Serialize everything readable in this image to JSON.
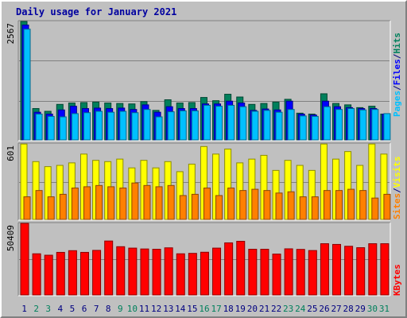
{
  "title": "Daily usage for January 2021",
  "colors": {
    "hits": "#00805c",
    "files": "#0000ff",
    "pages": "#00c0ff",
    "visits": "#ffff00",
    "sites": "#ff8000",
    "kbytes": "#ff0000",
    "weekday_label": "#000080",
    "weekend_label": "#00805c",
    "legend_sep": "#000080"
  },
  "legend": {
    "top": [
      "Pages",
      "/",
      "Files",
      "/",
      "Hits"
    ],
    "middle": [
      "Sites",
      "/",
      "Visits"
    ],
    "bottom": [
      "KBytes"
    ]
  },
  "chart_data": [
    {
      "type": "bar",
      "panel": "hits-files-pages",
      "ylabel": "2567",
      "ylim": [
        0,
        2567
      ],
      "categories": [
        "1",
        "2",
        "3",
        "4",
        "5",
        "6",
        "7",
        "8",
        "9",
        "10",
        "11",
        "12",
        "13",
        "14",
        "15",
        "16",
        "17",
        "18",
        "19",
        "20",
        "21",
        "22",
        "23",
        "24",
        "25",
        "26",
        "27",
        "28",
        "29",
        "30",
        "31"
      ],
      "series": [
        {
          "name": "Hits",
          "values": [
            2567,
            680,
            620,
            770,
            800,
            810,
            820,
            800,
            790,
            780,
            830,
            640,
            870,
            800,
            810,
            920,
            850,
            990,
            930,
            770,
            790,
            820,
            880,
            580,
            560,
            1000,
            790,
            760,
            700,
            730,
            560
          ]
        },
        {
          "name": "Files",
          "values": [
            2490,
            600,
            560,
            650,
            730,
            680,
            690,
            680,
            690,
            660,
            760,
            600,
            720,
            680,
            680,
            780,
            780,
            840,
            800,
            640,
            670,
            650,
            840,
            560,
            540,
            840,
            720,
            700,
            680,
            680,
            560
          ]
        },
        {
          "name": "Pages",
          "values": [
            2400,
            560,
            510,
            500,
            570,
            590,
            620,
            600,
            620,
            590,
            660,
            500,
            610,
            630,
            630,
            750,
            730,
            750,
            720,
            620,
            640,
            600,
            660,
            520,
            510,
            720,
            660,
            680,
            650,
            660,
            570
          ]
        }
      ]
    },
    {
      "type": "bar",
      "panel": "sites-visits",
      "ylabel": "601",
      "ylim": [
        0,
        601
      ],
      "categories": [
        "1",
        "2",
        "3",
        "4",
        "5",
        "6",
        "7",
        "8",
        "9",
        "10",
        "11",
        "12",
        "13",
        "14",
        "15",
        "16",
        "17",
        "18",
        "19",
        "20",
        "21",
        "22",
        "23",
        "24",
        "25",
        "26",
        "27",
        "28",
        "29",
        "30",
        "31"
      ],
      "series": [
        {
          "name": "Visits",
          "values": [
            600,
            460,
            420,
            430,
            450,
            520,
            470,
            460,
            480,
            410,
            470,
            410,
            460,
            380,
            440,
            580,
            520,
            560,
            450,
            480,
            510,
            390,
            470,
            430,
            390,
            600,
            480,
            540,
            430,
            600,
            520
          ]
        },
        {
          "name": "Sites",
          "values": [
            180,
            230,
            180,
            200,
            250,
            260,
            270,
            260,
            250,
            290,
            270,
            260,
            270,
            190,
            200,
            250,
            190,
            250,
            230,
            240,
            230,
            210,
            220,
            180,
            180,
            230,
            230,
            240,
            230,
            170,
            200
          ]
        }
      ]
    },
    {
      "type": "bar",
      "panel": "kbytes",
      "ylabel": "50409",
      "ylim": [
        0,
        50409
      ],
      "categories": [
        "1",
        "2",
        "3",
        "4",
        "5",
        "6",
        "7",
        "8",
        "9",
        "10",
        "11",
        "12",
        "13",
        "14",
        "15",
        "16",
        "17",
        "18",
        "19",
        "20",
        "21",
        "22",
        "23",
        "24",
        "25",
        "26",
        "27",
        "28",
        "29",
        "30",
        "31"
      ],
      "series": [
        {
          "name": "KBytes",
          "values": [
            50409,
            29000,
            28000,
            30000,
            31200,
            30000,
            31400,
            38000,
            34000,
            33000,
            32400,
            32200,
            33200,
            29000,
            29300,
            30100,
            33000,
            36700,
            37800,
            32200,
            32200,
            28800,
            32500,
            32100,
            31300,
            36100,
            35600,
            34300,
            33300,
            36100,
            36100
          ]
        }
      ]
    }
  ],
  "weekend_days": [
    "2",
    "3",
    "9",
    "10",
    "16",
    "17",
    "23",
    "24",
    "30",
    "31"
  ]
}
